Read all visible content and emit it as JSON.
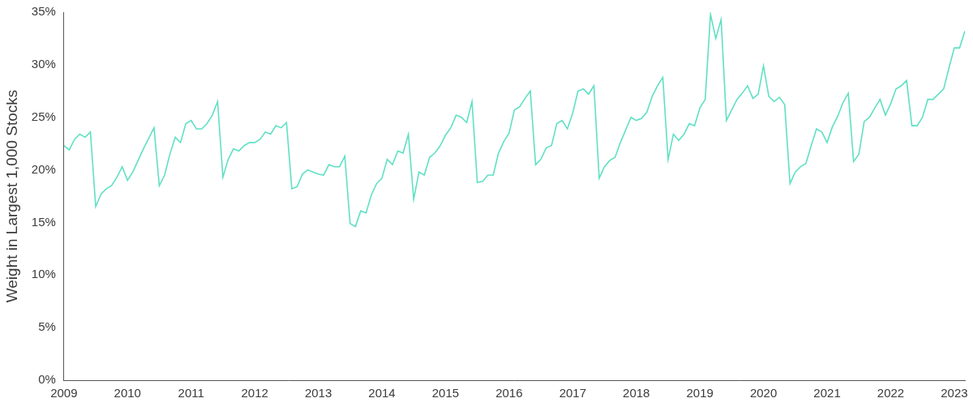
{
  "chart_data": {
    "type": "line",
    "y_label": "Weight in Largest 1,000 Stocks",
    "categories": [
      "2009",
      null,
      null,
      null,
      null,
      null,
      null,
      null,
      null,
      null,
      null,
      null,
      "2010",
      null,
      null,
      null,
      null,
      null,
      null,
      null,
      null,
      null,
      null,
      null,
      "2011",
      null,
      null,
      null,
      null,
      null,
      null,
      null,
      null,
      null,
      null,
      null,
      "2012",
      null,
      null,
      null,
      null,
      null,
      null,
      null,
      null,
      null,
      null,
      null,
      "2013",
      null,
      null,
      null,
      null,
      null,
      null,
      null,
      null,
      null,
      null,
      null,
      "2014",
      null,
      null,
      null,
      null,
      null,
      null,
      null,
      null,
      null,
      null,
      null,
      "2015",
      null,
      null,
      null,
      null,
      null,
      null,
      null,
      null,
      null,
      null,
      null,
      "2016",
      null,
      null,
      null,
      null,
      null,
      null,
      null,
      null,
      null,
      null,
      null,
      "2017",
      null,
      null,
      null,
      null,
      null,
      null,
      null,
      null,
      null,
      null,
      null,
      "2018",
      null,
      null,
      null,
      null,
      null,
      null,
      null,
      null,
      null,
      null,
      null,
      "2019",
      null,
      null,
      null,
      null,
      null,
      null,
      null,
      null,
      null,
      null,
      null,
      "2020",
      null,
      null,
      null,
      null,
      null,
      null,
      null,
      null,
      null,
      null,
      null,
      "2021",
      null,
      null,
      null,
      null,
      null,
      null,
      null,
      null,
      null,
      null,
      null,
      "2022",
      null,
      null,
      null,
      null,
      null,
      null,
      null,
      null,
      null,
      null,
      null,
      "2023",
      null,
      null
    ],
    "values": [
      22.3,
      21.9,
      22.9,
      23.4,
      23.1,
      23.6,
      16.5,
      17.7,
      18.2,
      18.5,
      19.3,
      20.3,
      19.0,
      19.8,
      20.9,
      22.0,
      23.0,
      24.0,
      18.5,
      19.5,
      21.5,
      23.1,
      22.6,
      24.4,
      24.7,
      23.9,
      23.9,
      24.4,
      25.2,
      26.5,
      19.3,
      21.0,
      22.0,
      21.8,
      22.3,
      22.6,
      22.6,
      22.9,
      23.6,
      23.4,
      24.2,
      24.0,
      24.5,
      18.2,
      18.4,
      19.6,
      20.0,
      19.8,
      19.6,
      19.5,
      20.5,
      20.3,
      20.3,
      21.3,
      14.9,
      14.6,
      16.1,
      15.9,
      17.6,
      18.7,
      19.2,
      21.0,
      20.5,
      21.8,
      21.6,
      23.4,
      17.2,
      19.8,
      19.5,
      21.2,
      21.6,
      22.3,
      23.3,
      24.0,
      25.2,
      25.0,
      24.5,
      26.5,
      18.8,
      18.9,
      19.5,
      19.5,
      21.6,
      22.7,
      23.5,
      25.7,
      26.0,
      26.8,
      27.5,
      20.5,
      21.0,
      22.1,
      22.3,
      24.4,
      24.7,
      23.9,
      25.4,
      27.5,
      27.7,
      27.2,
      28.0,
      19.2,
      20.3,
      20.9,
      21.2,
      22.6,
      23.8,
      25.0,
      24.7,
      24.9,
      25.5,
      27.0,
      28.0,
      28.8,
      21.0,
      23.4,
      22.8,
      23.4,
      24.4,
      24.2,
      25.9,
      26.7,
      34.8,
      32.5,
      34.3,
      24.7,
      25.7,
      26.7,
      27.3,
      28.0,
      26.8,
      27.2,
      29.9,
      27.0,
      26.5,
      26.9,
      26.2,
      18.7,
      19.8,
      20.3,
      20.6,
      22.3,
      23.9,
      23.6,
      22.6,
      24.1,
      25.1,
      26.4,
      27.3,
      20.8,
      21.5,
      24.6,
      25.0,
      25.9,
      26.7,
      25.2,
      26.3,
      27.7,
      28.0,
      28.5,
      24.2,
      24.2,
      25.0,
      26.7,
      26.7,
      27.2,
      27.7,
      29.7,
      31.6,
      31.6,
      33.2
    ],
    "color": "#5fe0c4",
    "ylim": [
      0,
      35
    ],
    "yticks": [
      {
        "value": 0,
        "label": "0%"
      },
      {
        "value": 5,
        "label": "5%"
      },
      {
        "value": 10,
        "label": "10%"
      },
      {
        "value": 15,
        "label": "15%"
      },
      {
        "value": 20,
        "label": "20%"
      },
      {
        "value": 25,
        "label": "25%"
      },
      {
        "value": 30,
        "label": "30%"
      },
      {
        "value": 35,
        "label": "35%"
      }
    ],
    "grid": false
  }
}
